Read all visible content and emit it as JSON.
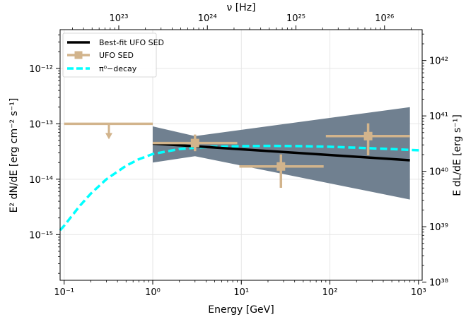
{
  "chart_data": {
    "type": "scatter",
    "xscale": "log",
    "yscale": "log",
    "xlim": [
      0.09,
      1100
    ],
    "ylim": [
      1.5e-16,
      5e-12
    ],
    "xlabel": "Energy [GeV]",
    "ylabel": "E² dN/dE [erg cm⁻² s⁻¹]",
    "top_axis_label": "ν [Hz]",
    "right_axis_label": "E dL/dE [erg s⁻¹]",
    "grid": true,
    "legend_position": "top-left",
    "x_ticks": [
      0.1,
      1,
      10,
      100,
      1000
    ],
    "x_tick_labels": [
      "10⁻¹",
      "10⁰",
      "10¹",
      "10²",
      "10³"
    ],
    "y_ticks": [
      1e-15,
      1e-14,
      1e-13,
      1e-12
    ],
    "y_tick_labels": [
      "10⁻¹⁵",
      "10⁻¹⁴",
      "10⁻¹³",
      "10⁻¹²"
    ],
    "top_ticks": [
      1e+23,
      1e+24,
      1e+25,
      1e+26
    ],
    "top_tick_labels": [
      "10²³",
      "10²⁴",
      "10²⁵",
      "10²⁶"
    ],
    "right_ticks": [
      1e+38,
      1e+39,
      1e+40,
      1e+41,
      1e+42
    ],
    "right_tick_labels": [
      "10³⁸",
      "10³⁹",
      "10⁴⁰",
      "10⁴¹",
      "10⁴²"
    ],
    "hz_per_gev": 2.418e+23,
    "lum_per_flux": 7.2e+53,
    "colors": {
      "best_fit": "#000000",
      "sed": "#d2b48c",
      "pi0": "#00ffff",
      "band": "#708090",
      "grid": "#e6e6e6"
    },
    "best_fit": {
      "name": "Best-fit UFO SED",
      "x": [
        1,
        800
      ],
      "y": [
        4.4e-14,
        2.2e-14
      ]
    },
    "band": {
      "x": [
        1,
        3,
        800
      ],
      "upper": [
        9e-14,
        6e-14,
        2e-13
      ],
      "lower": [
        2e-14,
        2.6e-14,
        4.3e-15
      ]
    },
    "sed_points": {
      "name": "UFO SED",
      "points": [
        {
          "x": 3.0,
          "y": 4.5e-14,
          "x_lo": 1.0,
          "x_hi": 9.0,
          "y_lo": 3.2e-14,
          "y_hi": 6.4e-14
        },
        {
          "x": 28,
          "y": 1.7e-14,
          "x_lo": 9.5,
          "x_hi": 85,
          "y_lo": 7e-15,
          "y_hi": 2.8e-14
        },
        {
          "x": 270,
          "y": 6e-14,
          "x_lo": 90,
          "x_hi": 800,
          "y_lo": 2.7e-14,
          "y_hi": 1.02e-13
        }
      ],
      "upper_limit": {
        "x": 0.32,
        "y": 1e-13,
        "x_lo": 0.1,
        "x_hi": 1.0
      }
    },
    "pi0": {
      "name": "π⁰−decay",
      "x": [
        0.09,
        0.1,
        0.15,
        0.2,
        0.3,
        0.5,
        0.7,
        1,
        2,
        3,
        5,
        10,
        20,
        50,
        100,
        200,
        500,
        1100
      ],
      "y": [
        1.2e-15,
        1.45e-15,
        3.3e-15,
        5.5e-15,
        1e-14,
        1.75e-14,
        2.3e-14,
        2.85e-14,
        3.5e-14,
        3.7e-14,
        3.85e-14,
        3.95e-14,
        4e-14,
        3.95e-14,
        3.85e-14,
        3.7e-14,
        3.5e-14,
        3.3e-14
      ]
    }
  }
}
